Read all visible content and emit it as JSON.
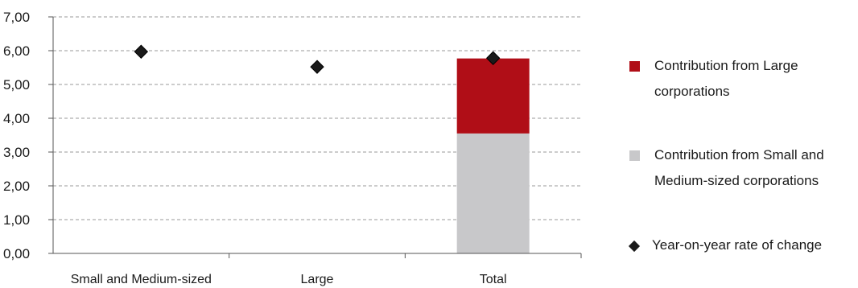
{
  "chart_data": {
    "type": "bar",
    "stacked": true,
    "categories": [
      "Small and Medium-sized",
      "Large",
      "Total"
    ],
    "series": [
      {
        "name": "Contribution from Small and Medium-sized corporations",
        "kind": "bar",
        "color": "#c8c8ca",
        "values": [
          null,
          null,
          3.55
        ]
      },
      {
        "name": "Contribution from Large corporations",
        "kind": "bar",
        "color": "#b00e17",
        "values": [
          null,
          null,
          2.22
        ]
      },
      {
        "name": "Year-on-year rate of change",
        "kind": "marker",
        "marker": "diamond",
        "color": "#1a1a1a",
        "values": [
          5.97,
          5.52,
          5.78
        ]
      }
    ],
    "y_ticks": [
      "0,00",
      "1,00",
      "2,00",
      "3,00",
      "4,00",
      "5,00",
      "6,00",
      "7,00"
    ],
    "ylim": [
      0,
      7
    ],
    "grid": true,
    "legend_position": "right"
  }
}
